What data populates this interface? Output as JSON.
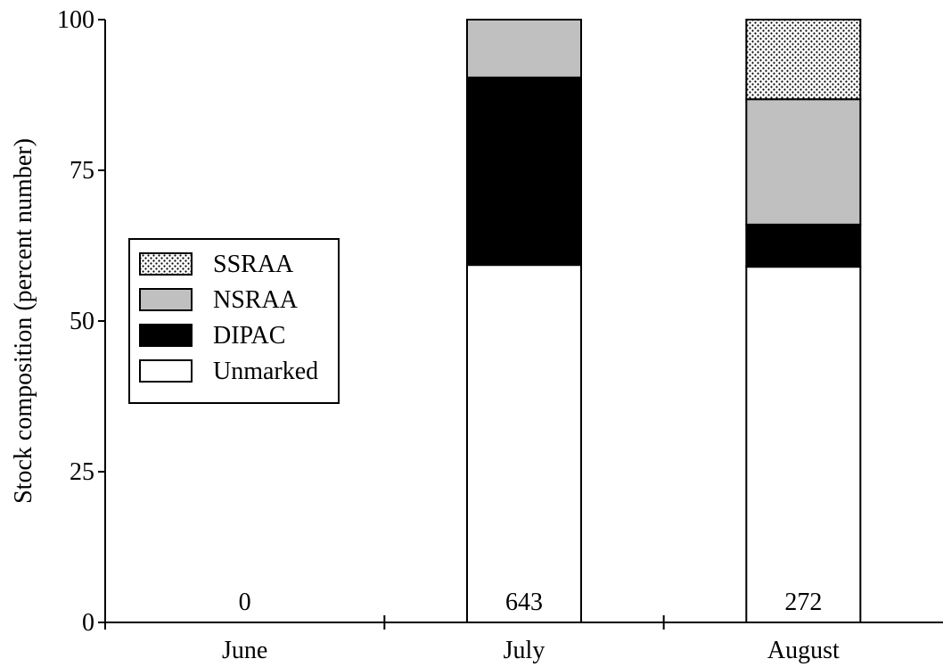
{
  "chart_data": {
    "type": "bar",
    "stacked": true,
    "title": "",
    "xlabel": "",
    "ylabel": "Stock composition (percent number)",
    "ylim": [
      0,
      100
    ],
    "yticks": [
      0,
      25,
      50,
      75,
      100
    ],
    "categories": [
      "June",
      "July",
      "August"
    ],
    "sample_sizes": [
      "0",
      "643",
      "272"
    ],
    "series": [
      {
        "name": "Unmarked",
        "fill": "#ffffff",
        "pattern": "none",
        "values": [
          0,
          59.3,
          59.0
        ]
      },
      {
        "name": "DIPAC",
        "fill": "#000000",
        "pattern": "none",
        "values": [
          0,
          31.1,
          7.0
        ]
      },
      {
        "name": "NSRAA",
        "fill": "#c0c0c0",
        "pattern": "none",
        "values": [
          0,
          9.6,
          20.8
        ]
      },
      {
        "name": "SSRAA",
        "fill": "#ffffff",
        "pattern": "stipple",
        "values": [
          0,
          0,
          13.2
        ]
      }
    ],
    "legend": {
      "placement": "left-middle",
      "order": [
        "SSRAA",
        "NSRAA",
        "DIPAC",
        "Unmarked"
      ]
    },
    "grid": false
  }
}
